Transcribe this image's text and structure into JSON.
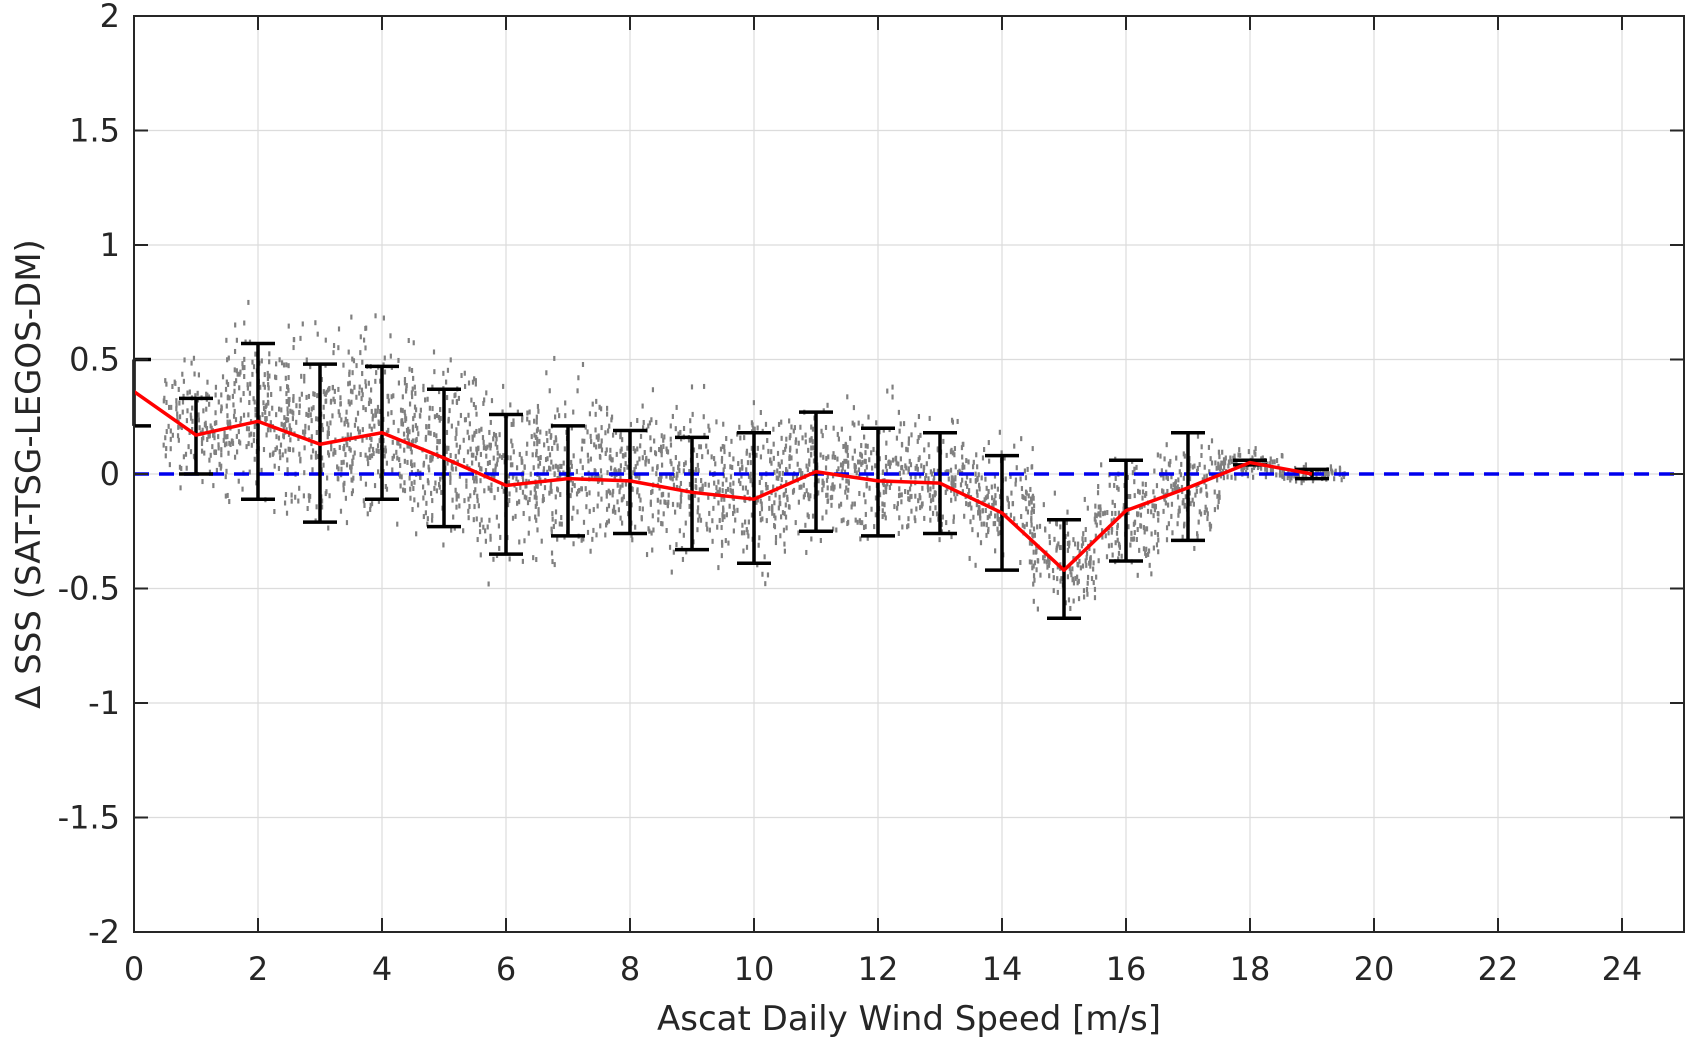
{
  "chart_data": {
    "type": "scatter",
    "xlabel": "Ascat Daily Wind Speed [m/s]",
    "ylabel": "Δ SSS (SAT-TSG-LEGOS-DM)",
    "xlim": [
      0,
      25
    ],
    "ylim": [
      -2,
      2
    ],
    "x_ticks": [
      "0",
      "2",
      "4",
      "6",
      "8",
      "10",
      "12",
      "14",
      "16",
      "18",
      "20",
      "22",
      "24"
    ],
    "y_ticks": [
      "2",
      "1.5",
      "1",
      "0.5",
      "0",
      "-0.5",
      "-1",
      "-1.5",
      "-2"
    ],
    "grid": true,
    "colors": {
      "scatter": "#808080",
      "mean_line": "#ff0000",
      "error_bars": "#000000",
      "zero_line": "#0000ee"
    },
    "scatter_cloud": [
      {
        "x": 1.0,
        "mean": 0.22,
        "spread": 0.22
      },
      {
        "x": 2.0,
        "mean": 0.28,
        "spread": 0.32
      },
      {
        "x": 3.0,
        "mean": 0.18,
        "spread": 0.35
      },
      {
        "x": 4.0,
        "mean": 0.22,
        "spread": 0.34
      },
      {
        "x": 5.0,
        "mean": 0.12,
        "spread": 0.33
      },
      {
        "x": 6.0,
        "mean": 0.0,
        "spread": 0.33
      },
      {
        "x": 7.0,
        "mean": 0.02,
        "spread": 0.3
      },
      {
        "x": 8.0,
        "mean": 0.0,
        "spread": 0.27
      },
      {
        "x": 9.0,
        "mean": -0.04,
        "spread": 0.27
      },
      {
        "x": 10.0,
        "mean": -0.06,
        "spread": 0.3
      },
      {
        "x": 11.0,
        "mean": 0.02,
        "spread": 0.25
      },
      {
        "x": 12.0,
        "mean": 0.0,
        "spread": 0.24
      },
      {
        "x": 13.0,
        "mean": -0.02,
        "spread": 0.22
      },
      {
        "x": 14.0,
        "mean": -0.12,
        "spread": 0.22
      },
      {
        "x": 15.0,
        "mean": -0.38,
        "spread": 0.18
      },
      {
        "x": 16.0,
        "mean": -0.18,
        "spread": 0.2
      },
      {
        "x": 17.0,
        "mean": -0.06,
        "spread": 0.18
      },
      {
        "x": 18.0,
        "mean": 0.04,
        "spread": 0.06
      },
      {
        "x": 19.0,
        "mean": 0.0,
        "spread": 0.03
      }
    ],
    "series": [
      {
        "type": "line",
        "x": [
          0,
          1,
          2,
          3,
          4,
          5,
          6,
          7,
          8,
          9,
          10,
          11,
          12,
          13,
          14,
          15,
          16,
          17,
          18,
          19
        ],
        "values": [
          0.36,
          0.17,
          0.23,
          0.13,
          0.18,
          0.07,
          -0.05,
          -0.02,
          -0.03,
          -0.08,
          -0.11,
          0.01,
          -0.03,
          -0.04,
          -0.17,
          -0.42,
          -0.16,
          -0.06,
          0.05,
          0.0
        ]
      },
      {
        "type": "errorbar",
        "x": [
          0,
          1,
          2,
          3,
          4,
          5,
          6,
          7,
          8,
          9,
          10,
          11,
          12,
          13,
          14,
          15,
          16,
          17,
          18,
          19
        ],
        "lower": [
          0.21,
          0.0,
          -0.11,
          -0.21,
          -0.11,
          -0.23,
          -0.35,
          -0.27,
          -0.26,
          -0.33,
          -0.39,
          -0.25,
          -0.27,
          -0.26,
          -0.42,
          -0.63,
          -0.38,
          -0.29,
          0.04,
          -0.02
        ],
        "upper": [
          0.5,
          0.33,
          0.57,
          0.48,
          0.47,
          0.37,
          0.26,
          0.21,
          0.19,
          0.16,
          0.18,
          0.27,
          0.2,
          0.18,
          0.08,
          -0.2,
          0.06,
          0.18,
          0.06,
          0.02
        ]
      },
      {
        "type": "reference-line",
        "y": 0,
        "style": "dashed"
      }
    ]
  }
}
